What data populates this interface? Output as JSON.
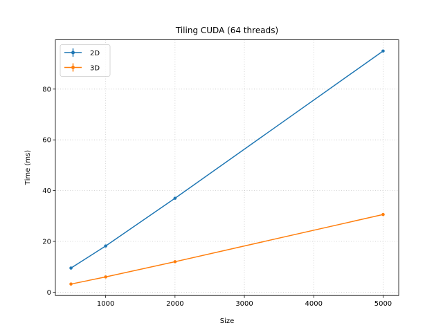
{
  "chart_data": {
    "type": "line",
    "title": "Tiling CUDA (64 threads)",
    "xlabel": "Size",
    "ylabel": "Time (ms)",
    "x": [
      500,
      1000,
      2000,
      5000
    ],
    "series": [
      {
        "name": "2D",
        "values": [
          9.5,
          18.2,
          37.0,
          95.0
        ],
        "color": "#1f77b4"
      },
      {
        "name": "3D",
        "values": [
          3.2,
          6.0,
          12.0,
          30.6
        ],
        "color": "#ff7f0e"
      }
    ],
    "xlim": [
      275,
      5225
    ],
    "ylim": [
      -1.3,
      99.4
    ],
    "xticks": [
      1000,
      2000,
      3000,
      4000,
      5000
    ],
    "yticks": [
      0,
      20,
      40,
      60,
      80
    ],
    "grid": true,
    "legend": "upper-left"
  }
}
